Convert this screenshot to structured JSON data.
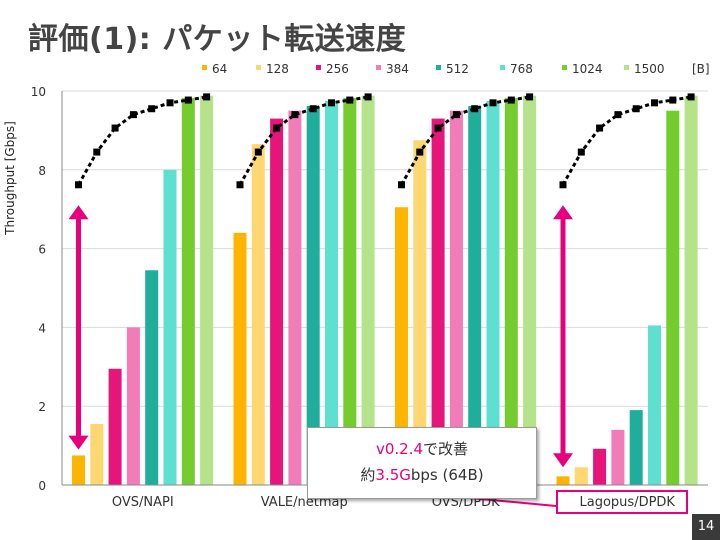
{
  "slide": {
    "title": "評価(1): パケット転送速度",
    "page_number": "14"
  },
  "callout": {
    "line1_highlight": "v0.2.4",
    "line1_rest": "で改善",
    "line2_prefix": "約",
    "line2_highlight": "3.5G",
    "line2_rest": "bps (64B)"
  },
  "colors": {
    "accent": "#e6007e",
    "line": "#000000",
    "series": [
      "#ffb400",
      "#ffd770",
      "#e5157a",
      "#f27cb8",
      "#1fae9b",
      "#5ee0d0",
      "#75cc2e",
      "#b5e38a"
    ]
  },
  "chart_data": {
    "type": "bar",
    "title": "評価(1): パケット転送速度",
    "xlabel": "",
    "ylabel": "Throughput [Gbps]",
    "ylim": [
      0,
      10
    ],
    "yticks": [
      "0",
      "2",
      "4",
      "6",
      "8",
      "10"
    ],
    "unit_label": "[B]",
    "categories": [
      "OVS/NAPI",
      "VALE/netmap",
      "OVS/DPDK",
      "Lagopus/DPDK"
    ],
    "series": [
      {
        "name": "64",
        "values": [
          0.75,
          6.4,
          7.05,
          0.22
        ]
      },
      {
        "name": "128",
        "values": [
          1.55,
          8.65,
          8.75,
          0.45
        ]
      },
      {
        "name": "256",
        "values": [
          2.95,
          9.3,
          9.3,
          0.92
        ]
      },
      {
        "name": "384",
        "values": [
          4.0,
          9.5,
          9.5,
          1.4
        ]
      },
      {
        "name": "512",
        "values": [
          5.45,
          9.62,
          9.62,
          1.9
        ]
      },
      {
        "name": "768",
        "values": [
          8.0,
          9.75,
          9.75,
          4.05
        ]
      },
      {
        "name": "1024",
        "values": [
          9.82,
          9.82,
          9.82,
          9.5
        ]
      },
      {
        "name": "1500",
        "values": [
          9.88,
          9.88,
          9.88,
          9.88
        ]
      }
    ],
    "theoretical_line": {
      "name": "line rate",
      "values": [
        7.62,
        8.45,
        9.06,
        9.4,
        9.55,
        9.7,
        9.77,
        9.85
      ]
    },
    "arrows": [
      {
        "category": "OVS/NAPI",
        "from": 0.95,
        "to": 7.05
      },
      {
        "category": "Lagopus/DPDK",
        "from": 0.5,
        "to": 7.05
      }
    ],
    "legend_position": "top"
  }
}
